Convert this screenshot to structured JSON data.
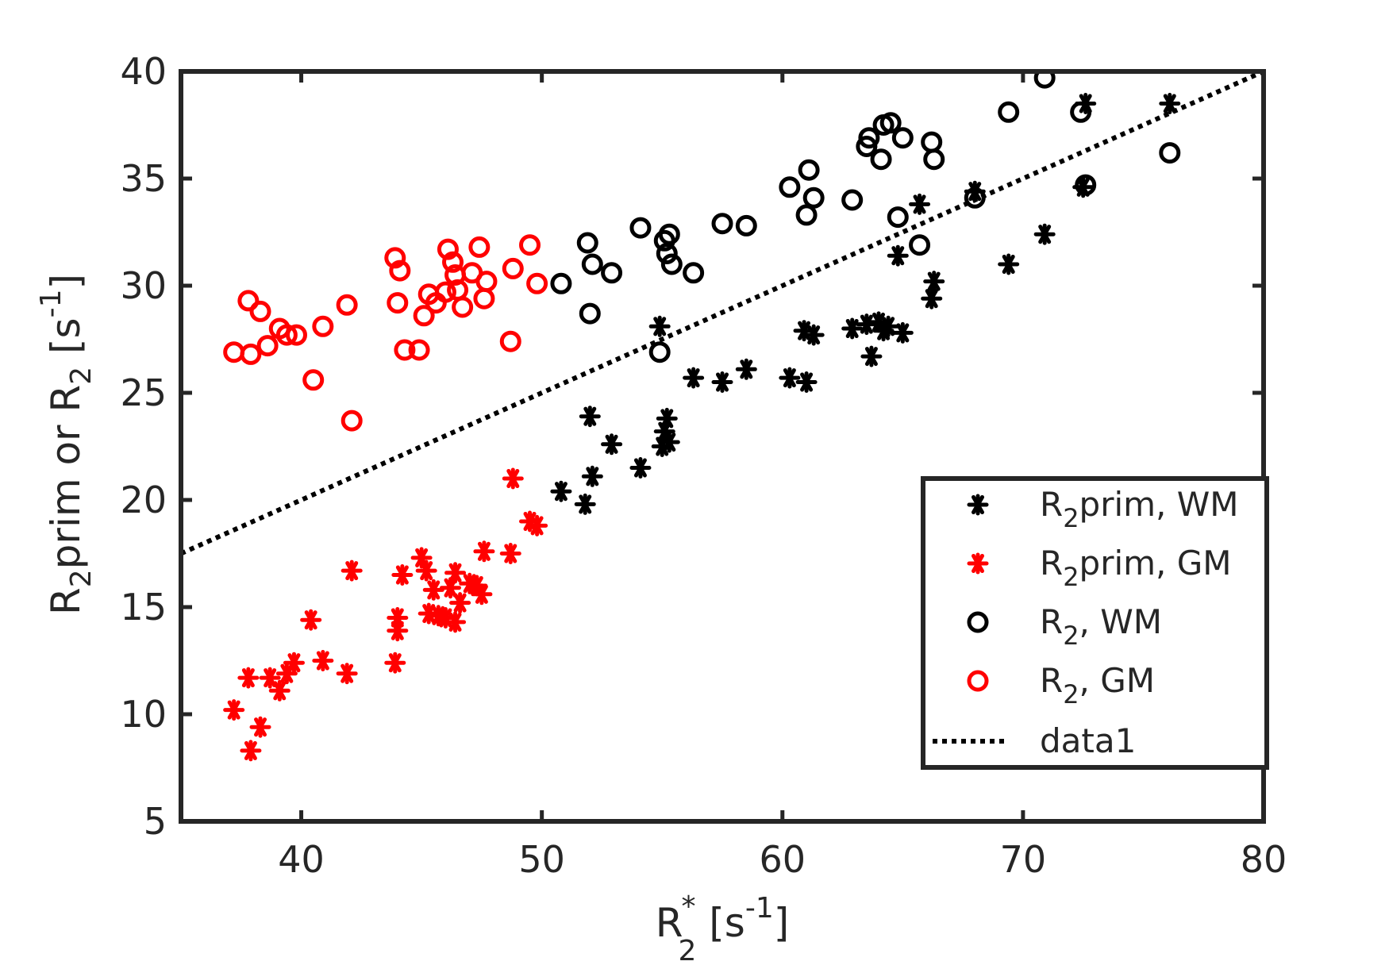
{
  "chart_data": {
    "type": "scatter",
    "xlabel": {
      "base": "R",
      "sub": "2",
      "sup": "*",
      "unit_open": " [s",
      "unit_sup": "-1",
      "unit_close": "]"
    },
    "ylabel": {
      "part1": "R",
      "sub1": "2",
      "part2": "prim or R",
      "sub2": "2",
      "unit_open": " [s",
      "unit_sup": "-1",
      "unit_close": "]"
    },
    "xlim": [
      35,
      80
    ],
    "ylim": [
      5,
      40
    ],
    "xticks": [
      40,
      50,
      60,
      70,
      80
    ],
    "yticks": [
      5,
      10,
      15,
      20,
      25,
      30,
      35,
      40
    ],
    "grid": false,
    "legend_position": "bottom-right",
    "series": [
      {
        "name": "R2prim, WM",
        "legend": {
          "base": "R",
          "sub": "2",
          "rest": "prim, WM"
        },
        "marker": "asterisk",
        "color": "#000000",
        "points": [
          [
            50.8,
            20.4
          ],
          [
            51.8,
            19.8
          ],
          [
            52.0,
            23.9
          ],
          [
            52.1,
            21.1
          ],
          [
            52.9,
            22.6
          ],
          [
            54.1,
            21.5
          ],
          [
            54.9,
            28.1
          ],
          [
            55.0,
            22.5
          ],
          [
            55.1,
            23.2
          ],
          [
            55.2,
            23.8
          ],
          [
            55.3,
            22.7
          ],
          [
            56.3,
            25.7
          ],
          [
            57.5,
            25.5
          ],
          [
            58.5,
            26.1
          ],
          [
            60.3,
            25.7
          ],
          [
            60.9,
            27.9
          ],
          [
            61.0,
            25.5
          ],
          [
            61.3,
            27.7
          ],
          [
            62.9,
            28.0
          ],
          [
            63.5,
            28.2
          ],
          [
            63.7,
            26.7
          ],
          [
            64.0,
            28.3
          ],
          [
            64.2,
            27.9
          ],
          [
            64.4,
            28.1
          ],
          [
            64.8,
            31.4
          ],
          [
            65.0,
            27.8
          ],
          [
            65.7,
            33.8
          ],
          [
            66.2,
            29.4
          ],
          [
            66.3,
            30.2
          ],
          [
            68.0,
            34.4
          ],
          [
            69.4,
            31.0
          ],
          [
            70.9,
            32.4
          ],
          [
            72.5,
            34.6
          ],
          [
            72.6,
            38.5
          ],
          [
            76.1,
            38.5
          ]
        ]
      },
      {
        "name": "R2prim, GM",
        "legend": {
          "base": "R",
          "sub": "2",
          "rest": "prim, GM"
        },
        "marker": "asterisk",
        "color": "#ff0000",
        "points": [
          [
            37.2,
            10.2
          ],
          [
            37.8,
            11.7
          ],
          [
            37.9,
            8.3
          ],
          [
            38.3,
            9.4
          ],
          [
            38.7,
            11.7
          ],
          [
            39.1,
            11.1
          ],
          [
            39.4,
            11.9
          ],
          [
            39.7,
            12.4
          ],
          [
            40.4,
            14.4
          ],
          [
            40.9,
            12.5
          ],
          [
            41.9,
            11.9
          ],
          [
            42.1,
            16.7
          ],
          [
            43.9,
            12.4
          ],
          [
            44.0,
            14.5
          ],
          [
            44.0,
            13.9
          ],
          [
            44.2,
            16.5
          ],
          [
            45.0,
            17.3
          ],
          [
            45.2,
            16.7
          ],
          [
            45.3,
            14.7
          ],
          [
            45.5,
            15.8
          ],
          [
            45.7,
            14.6
          ],
          [
            46.0,
            14.5
          ],
          [
            46.2,
            15.9
          ],
          [
            46.4,
            16.6
          ],
          [
            46.4,
            14.3
          ],
          [
            46.6,
            15.2
          ],
          [
            47.0,
            16.1
          ],
          [
            47.3,
            16.0
          ],
          [
            47.5,
            15.6
          ],
          [
            47.6,
            17.6
          ],
          [
            48.7,
            17.5
          ],
          [
            48.8,
            21.0
          ],
          [
            49.5,
            19.0
          ],
          [
            49.8,
            18.8
          ]
        ]
      },
      {
        "name": "R2, WM",
        "legend": {
          "base": "R",
          "sub": "2",
          "rest": ", WM"
        },
        "marker": "circle",
        "color": "#000000",
        "points": [
          [
            50.8,
            30.1
          ],
          [
            51.9,
            32.0
          ],
          [
            52.0,
            28.7
          ],
          [
            52.1,
            31.0
          ],
          [
            52.9,
            30.6
          ],
          [
            54.1,
            32.7
          ],
          [
            54.9,
            26.9
          ],
          [
            55.1,
            32.1
          ],
          [
            55.2,
            31.5
          ],
          [
            55.3,
            32.4
          ],
          [
            55.4,
            31.0
          ],
          [
            56.3,
            30.6
          ],
          [
            57.5,
            32.9
          ],
          [
            58.5,
            32.8
          ],
          [
            60.3,
            34.6
          ],
          [
            61.0,
            33.3
          ],
          [
            61.1,
            35.4
          ],
          [
            61.3,
            34.1
          ],
          [
            62.9,
            34.0
          ],
          [
            63.5,
            36.5
          ],
          [
            63.6,
            36.9
          ],
          [
            64.1,
            35.9
          ],
          [
            64.2,
            37.5
          ],
          [
            64.5,
            37.6
          ],
          [
            64.8,
            33.2
          ],
          [
            65.0,
            36.9
          ],
          [
            65.7,
            31.9
          ],
          [
            66.2,
            36.7
          ],
          [
            66.3,
            35.9
          ],
          [
            68.0,
            34.1
          ],
          [
            69.4,
            38.1
          ],
          [
            70.9,
            39.7
          ],
          [
            72.4,
            38.1
          ],
          [
            72.6,
            34.7
          ],
          [
            76.1,
            36.2
          ]
        ]
      },
      {
        "name": "R2, GM",
        "legend": {
          "base": "R",
          "sub": "2",
          "rest": ", GM"
        },
        "marker": "circle",
        "color": "#ff0000",
        "points": [
          [
            37.2,
            26.9
          ],
          [
            37.8,
            29.3
          ],
          [
            37.9,
            26.8
          ],
          [
            38.3,
            28.8
          ],
          [
            38.6,
            27.2
          ],
          [
            39.1,
            28.0
          ],
          [
            39.4,
            27.7
          ],
          [
            39.8,
            27.7
          ],
          [
            40.5,
            25.6
          ],
          [
            40.9,
            28.1
          ],
          [
            41.9,
            29.1
          ],
          [
            42.1,
            23.7
          ],
          [
            43.9,
            31.3
          ],
          [
            44.0,
            29.2
          ],
          [
            44.1,
            30.7
          ],
          [
            44.3,
            27.0
          ],
          [
            44.9,
            27.0
          ],
          [
            45.1,
            28.6
          ],
          [
            45.3,
            29.6
          ],
          [
            45.6,
            29.2
          ],
          [
            46.0,
            29.7
          ],
          [
            46.1,
            31.7
          ],
          [
            46.3,
            31.1
          ],
          [
            46.4,
            30.5
          ],
          [
            46.5,
            29.8
          ],
          [
            46.7,
            29.0
          ],
          [
            47.1,
            30.6
          ],
          [
            47.4,
            31.8
          ],
          [
            47.6,
            29.4
          ],
          [
            47.7,
            30.2
          ],
          [
            48.7,
            27.4
          ],
          [
            48.8,
            30.8
          ],
          [
            49.5,
            31.9
          ],
          [
            49.8,
            30.1
          ]
        ]
      },
      {
        "name": "data1",
        "legend": {
          "rest": "data1"
        },
        "marker": "dotted-line",
        "color": "#000000",
        "points": [
          [
            35,
            17.5
          ],
          [
            80,
            40
          ]
        ]
      }
    ]
  }
}
